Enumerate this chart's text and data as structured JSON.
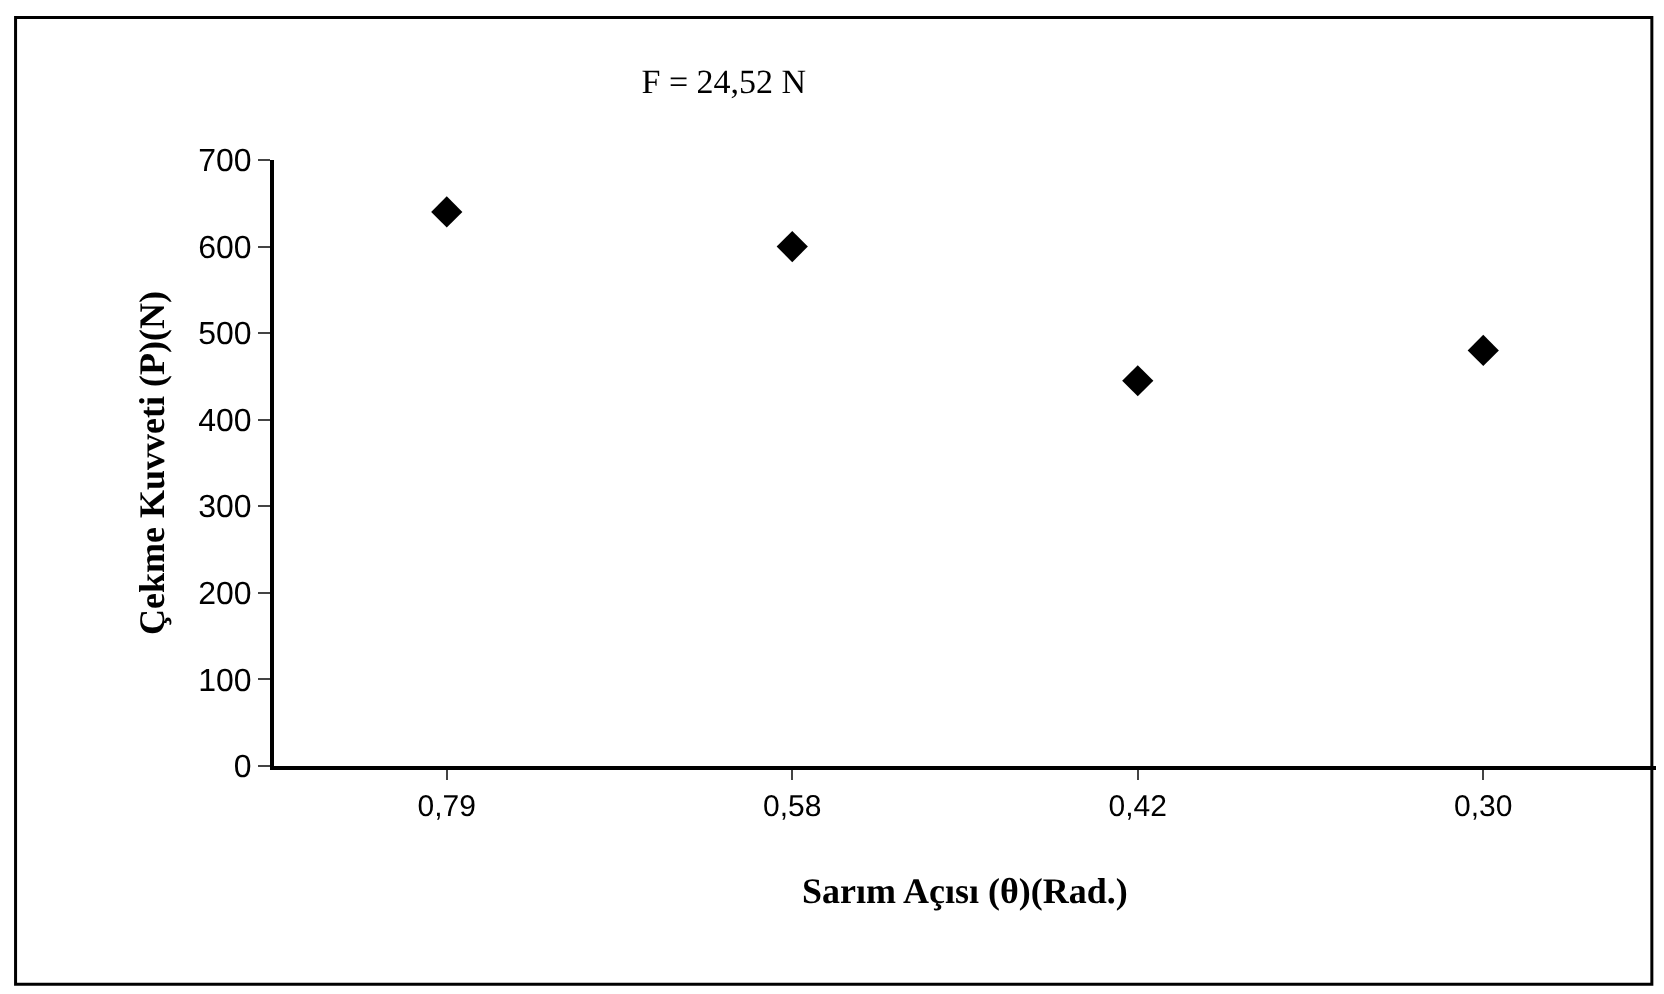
{
  "chart_data": {
    "type": "scatter",
    "title": "F = 24,52 N",
    "xlabel": "Sarım Açısı (θ)(Rad.)",
    "ylabel": "Çekme Kuvveti (P)(N)",
    "categories": [
      "0,79",
      "0,58",
      "0,42",
      "0,30"
    ],
    "series": [
      {
        "color": "#000000",
        "values": [
          640,
          600,
          445,
          480
        ]
      }
    ],
    "ylim": [
      0,
      700
    ],
    "yticks": [
      0,
      100,
      200,
      300,
      400,
      500,
      600,
      700
    ],
    "marker": "diamond"
  }
}
